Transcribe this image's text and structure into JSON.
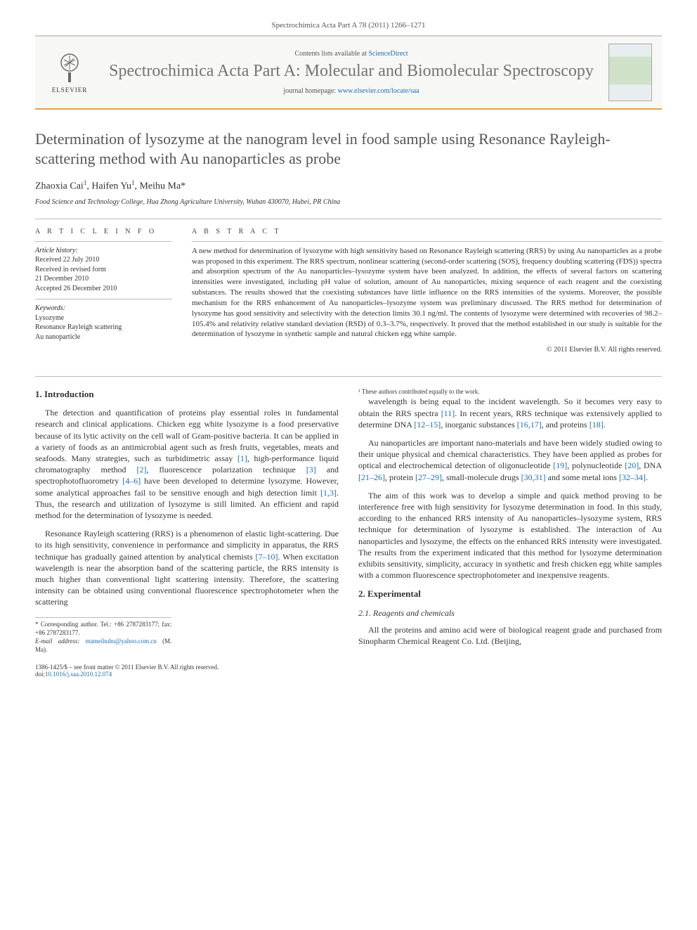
{
  "header": {
    "citation": "Spectrochimica Acta Part A 78 (2011) 1266–1271",
    "elsevier_text": "ELSEVIER",
    "contents_prefix": "Contents lists available at ",
    "contents_link": "ScienceDirect",
    "journal_title": "Spectrochimica Acta Part A: Molecular and Biomolecular Spectroscopy",
    "homepage_prefix": "journal homepage: ",
    "homepage_url": "www.elsevier.com/locate/saa",
    "logo_colors": {
      "border": "#e8a04c",
      "bg": "#f7f7f5",
      "tree": "#6b6b6b"
    }
  },
  "article": {
    "title": "Determination of lysozyme at the nanogram level in food sample using Resonance Rayleigh-scattering method with Au nanoparticles as probe",
    "authors_html": "Zhaoxia Cai<sup>1</sup>, Haifen Yu<sup>1</sup>, Meihu Ma*",
    "affiliation": "Food Science and Technology College, Hua Zhong Agriculture University, Wuhan 430070, Hubei, PR China"
  },
  "info": {
    "heading": "A R T I C L E   I N F O",
    "history_label": "Article history:",
    "history": [
      "Received 22 July 2010",
      "Received in revised form",
      "21 December 2010",
      "Accepted 26 December 2010"
    ],
    "keywords_label": "Keywords:",
    "keywords": [
      "Lysozyme",
      "Resonance Rayleigh scattering",
      "Au nanoparticle"
    ]
  },
  "abstract": {
    "heading": "A B S T R A C T",
    "text": "A new method for determination of lysozyme with high sensitivity based on Resonance Rayleigh scattering (RRS) by using Au nanoparticles as a probe was proposed in this experiment. The RRS spectrum, nonlinear scattering (second-order scattering (SOS), frequency doubling scattering (FDS)) spectra and absorption spectrum of the Au nanoparticles–lysozyme system have been analyzed. In addition, the effects of several factors on scattering intensities were investigated, including pH value of solution, amount of Au nanoparticles, mixing sequence of each reagent and the coexisting substances. The results showed that the coexisting substances have little influence on the RRS intensities of the systems. Moreover, the possible mechanism for the RRS enhancement of Au nanoparticles–lysozyme system was preliminary discussed. The RRS method for determination of lysozyme has good sensitivity and selectivity with the detection limits 30.1 ng/ml. The contents of lysozyme were determined with recoveries of 98.2–105.4% and relativity relative standard deviation (RSD) of 0.3–3.7%, respectively. It proved that the method established in our study is suitable for the determination of lysozyme in synthetic sample and natural chicken egg white sample.",
    "copyright": "© 2011 Elsevier B.V. All rights reserved."
  },
  "body": {
    "s1_heading": "1. Introduction",
    "s1_p1": "The detection and quantification of proteins play essential roles in fundamental research and clinical applications. Chicken egg white lysozyme is a food preservative because of its lytic activity on the cell wall of Gram-positive bacteria. It can be applied in a variety of foods as an antimicrobial agent such as fresh fruits, vegetables, meats and seafoods. Many strategies, such as turbidimetric assay [1], high-performance liquid chromatography method [2], fluorescence polarization technique [3] and spectrophotofluorometry [4–6] have been developed to determine lysozyme. However, some analytical approaches fail to be sensitive enough and high detection limit [1,3]. Thus, the research and utilization of lysozyme is still limited. An efficient and rapid method for the determination of lysozyme is needed.",
    "s1_p2": "Resonance Rayleigh scattering (RRS) is a phenomenon of elastic light-scattering. Due to its high sensitivity, convenience in performance and simplicity in apparatus, the RRS technique has gradually gained attention by analytical chemists [7–10]. When excitation wavelength is near the absorption band of the scattering particle, the RRS intensity is much higher than conventional light scattering intensity. Therefore, the scattering intensity can be obtained using conventional fluorescence spectrophotometer when the scattering",
    "s1_p3": "wavelength is being equal to the incident wavelength. So it becomes very easy to obtain the RRS spectra [11]. In recent years, RRS technique was extensively applied to determine DNA [12–15], inorganic substances [16,17], and proteins [18].",
    "s1_p4": "Au nanoparticles are important nano-materials and have been widely studied owing to their unique physical and chemical characteristics. They have been applied as probes for optical and electrochemical detection of oligonucleotide [19], polynucleotide [20], DNA [21–26], protein [27–29], small-molecule drugs [30,31] and some metal ions [32–34].",
    "s1_p5": "The aim of this work was to develop a simple and quick method proving to be interference free with high sensitivity for lysozyme determination in food. In this study, according to the enhanced RRS intensity of Au nanoparticles–lysozyme system, RRS technique for determination of lysozyme is established. The interaction of Au nanoparticles and lysozyme, the effects on the enhanced RRS intensity were investigated. The results from the experiment indicated that this method for lysozyme determination exhibits sensitivity, simplicity, accuracy in synthetic and fresh chicken egg white samples with a common fluorescence spectrophotometer and inexpensive reagents.",
    "s2_heading": "2. Experimental",
    "s2_1_heading": "2.1. Reagents and chemicals",
    "s2_1_p1": "All the proteins and amino acid were of biological reagent grade and purchased from Sinopharm Chemical Reagent Co. Ltd. (Beijing,"
  },
  "footnotes": {
    "corr": "* Corresponding author. Tel.: +86 2787283177; fax: +86 2787283177.",
    "email_label": "E-mail address: ",
    "email": "mameihuhu@yahoo.com.cn",
    "email_suffix": " (M. Ma).",
    "equal": "¹ These authors contributed equally to the work."
  },
  "footer": {
    "left_line1": "1386-1425/$ – see front matter © 2011 Elsevier B.V. All rights reserved.",
    "doi_prefix": "doi:",
    "doi": "10.1016/j.saa.2010.12.074"
  },
  "refs": {
    "r1": "[1]",
    "r2": "[2]",
    "r3": "[3]",
    "r4_6": "[4–6]",
    "r1_3": "[1,3]",
    "r7_10": "[7–10]",
    "r11": "[11]",
    "r12_15": "[12–15]",
    "r16_17": "[16,17]",
    "r18": "[18]",
    "r19": "[19]",
    "r20": "[20]",
    "r21_26": "[21–26]",
    "r27_29": "[27–29]",
    "r30_31": "[30,31]",
    "r32_34": "[32–34]"
  },
  "colors": {
    "link": "#1a6fb5",
    "accent_border": "#e8a04c",
    "text": "#333333",
    "title_grey": "#555555"
  }
}
